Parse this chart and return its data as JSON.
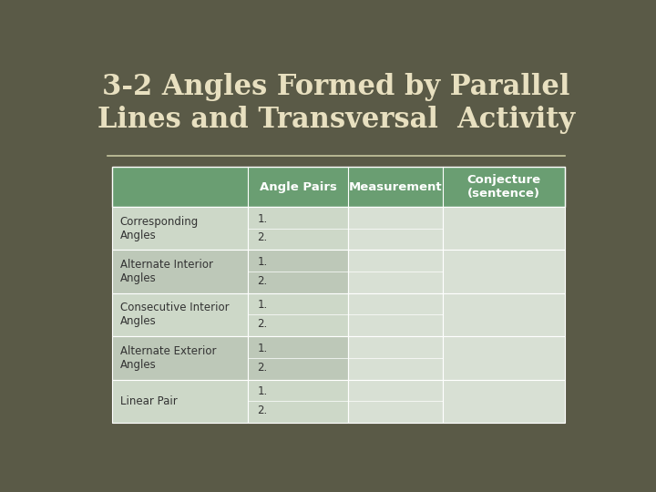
{
  "title_line1": "3-2 Angles Formed by Parallel",
  "title_line2": "Lines and Transversal  Activity",
  "title_color": "#e8e0c0",
  "title_fontsize": 22,
  "bg_color": "#5a5a47",
  "header_bg_color": "#6a9e72",
  "header_text_color": "#ffffff",
  "table_border_color": "#ffffff",
  "cell_text_color": "#333333",
  "row_labels": [
    "Corresponding\nAngles",
    "Alternate Interior\nAngles",
    "Consecutive Interior\nAngles",
    "Alternate Exterior\nAngles",
    "Linear Pair"
  ],
  "col_headers": [
    "Angle Pairs",
    "Measurement",
    "Conjecture\n(sentence)"
  ],
  "title_separator_color": "#c8c8a0",
  "row_color_a": "#cdd8c8",
  "row_color_b": "#bdc8b8",
  "cell_light": "#d8e0d4"
}
